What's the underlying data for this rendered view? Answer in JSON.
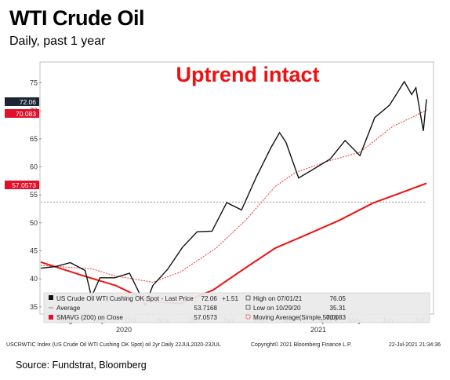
{
  "title": "WTI Crude Oil",
  "subtitle": "Daily, past 1  year",
  "annotation": "Uptrend intact",
  "source": "Source: Fundstrat, Bloomberg",
  "footer_left": "USCRWTIC Index (US Crude Oil WTI Cushing OK Spot) oil 2yr  Daily 22JUL2020-23JUL",
  "footer_mid": "Copyright© 2021 Bloomberg Finance L.P.",
  "footer_right": "22-Jul-2021 21:34:36",
  "colors": {
    "price": "#111111",
    "sma200": "#ee1111",
    "ma50": "#ee3333",
    "avg": "#888888",
    "label_dark": "#1b2433",
    "label_red": "#e0102a"
  },
  "legend": {
    "row1": {
      "name": "US Crude Oil WTI Cushing OK Spot - Last Price",
      "value": "72.06",
      "change": "+1.51",
      "hl_label": "High on 07/01/21",
      "hl_value": "76.05"
    },
    "row2": {
      "name": "Average",
      "value": "53.7168",
      "hl_label": "Low on 10/29/20",
      "hl_value": "35.31"
    },
    "row3": {
      "name": "SMAVG (200) on Close",
      "value": "57.0573",
      "hl_label": "Moving Average(Simple,50,0)",
      "hl_value": "70.083"
    }
  },
  "chart_data": {
    "type": "line",
    "title": "WTI Crude Oil",
    "subtitle": "Daily, past 1  year",
    "x_labels": [
      "Aug",
      "Sep",
      "Oct",
      "Nov",
      "Dec",
      "Jan",
      "Feb",
      "Mar",
      "Apr",
      "May",
      "Jun",
      "Jul"
    ],
    "x_year_labels": [
      "2020",
      "2021"
    ],
    "y_ticks": [
      35,
      40,
      45,
      50,
      55,
      60,
      65,
      70,
      75
    ],
    "ylim": [
      34,
      78
    ],
    "grid": false,
    "last_price_label": "72.06",
    "ma50_label": "70.083",
    "sma200_label": "57.0573",
    "series": [
      {
        "name": "US Crude Oil WTI Cushing OK Spot - Last Price",
        "x": [
          "2020-07-22",
          "2020-08-05",
          "2020-08-19",
          "2020-09-02",
          "2020-09-08",
          "2020-09-16",
          "2020-09-30",
          "2020-10-14",
          "2020-10-29",
          "2020-11-05",
          "2020-11-19",
          "2020-12-03",
          "2020-12-17",
          "2020-12-31",
          "2021-01-14",
          "2021-01-28",
          "2021-02-11",
          "2021-02-25",
          "2021-03-05",
          "2021-03-11",
          "2021-03-23",
          "2021-04-08",
          "2021-04-22",
          "2021-05-06",
          "2021-05-20",
          "2021-06-03",
          "2021-06-17",
          "2021-07-01",
          "2021-07-08",
          "2021-07-12",
          "2021-07-19",
          "2021-07-22"
        ],
        "y": [
          41.9,
          42.2,
          42.9,
          41.5,
          36.8,
          40.2,
          40.2,
          41.0,
          35.3,
          38.8,
          41.7,
          45.6,
          48.4,
          48.5,
          53.6,
          52.3,
          58.2,
          63.5,
          66.1,
          64.4,
          58.0,
          59.8,
          61.4,
          64.7,
          62.0,
          68.8,
          71.0,
          75.2,
          72.9,
          74.1,
          66.4,
          72.06
        ]
      },
      {
        "name": "Moving Average(Simple,50,0)",
        "x": [
          "2020-07-22",
          "2020-09-08",
          "2020-10-01",
          "2020-11-05",
          "2020-12-01",
          "2021-01-04",
          "2021-02-01",
          "2021-03-01",
          "2021-03-20",
          "2021-04-20",
          "2021-05-20",
          "2021-06-20",
          "2021-07-22"
        ],
        "y": [
          42.4,
          41.8,
          40.5,
          39.4,
          41.2,
          45.5,
          50.5,
          56.5,
          59.0,
          61.0,
          62.6,
          67.2,
          70.083
        ]
      },
      {
        "name": "SMAVG (200) on Close",
        "x": [
          "2020-07-22",
          "2020-09-01",
          "2020-10-01",
          "2020-11-01",
          "2020-12-01",
          "2021-01-01",
          "2021-02-01",
          "2021-03-01",
          "2021-04-01",
          "2021-05-01",
          "2021-06-01",
          "2021-07-22"
        ],
        "y": [
          43.0,
          40.5,
          38.8,
          36.0,
          35.6,
          38.0,
          42.0,
          45.5,
          48.0,
          50.5,
          53.5,
          57.0573
        ]
      },
      {
        "name": "Average",
        "x": [
          "2020-07-22",
          "2021-07-22"
        ],
        "y": [
          53.7168,
          53.7168
        ]
      }
    ]
  }
}
